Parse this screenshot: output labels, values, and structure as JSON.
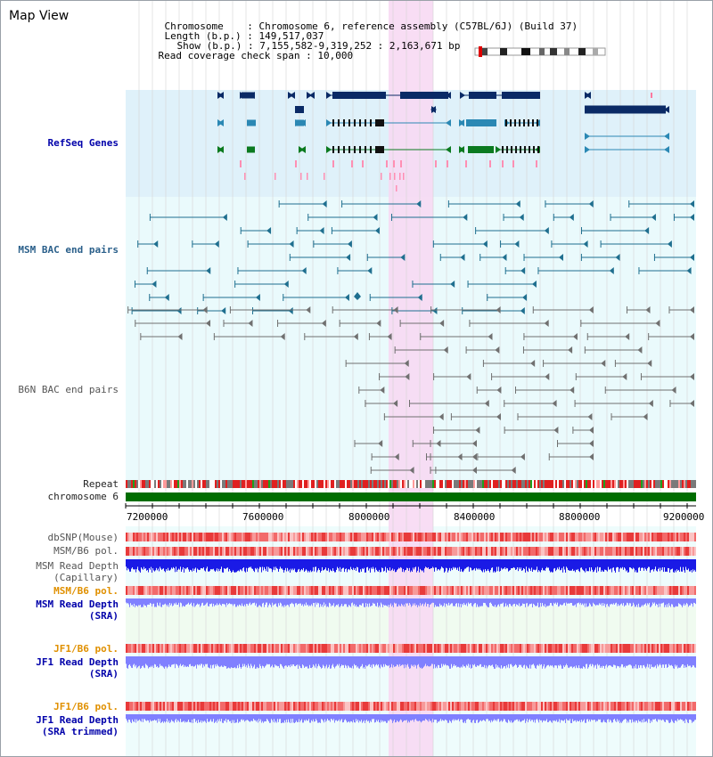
{
  "title": "Map View",
  "info": {
    "chromosome_label": "Chromosome",
    "chromosome_value": "Chromosome 6, reference assembly (C57BL/6J) (Build 37)",
    "length_label": "Length (b.p.)",
    "length_value": "149,517,037",
    "show_label": "Show (b.p.)",
    "show_value": "7,155,582-9,319,252 : 2,163,671 bp",
    "coverage_label": "Read coverage check span",
    "coverage_value": "10,000"
  },
  "tracks": {
    "refseq": "RefSeq Genes",
    "msm_bac": "MSM BAC end pairs",
    "b6n_bac": "B6N BAC end pairs",
    "repeat": "Repeat",
    "chromosome": "chromosome 6",
    "dbsnp": "dbSNP(Mouse)",
    "msm_b6_pol_1": "MSM/B6 pol.",
    "msm_read_depth_cap_1": "MSM Read Depth",
    "msm_read_depth_cap_2": "(Capillary)",
    "msm_b6_pol_2": "MSM/B6 pol.",
    "msm_read_depth_sra_1": "MSM Read Depth",
    "msm_read_depth_sra_2": "(SRA)",
    "jf1_b6_pol_1": "JF1/B6 pol.",
    "jf1_read_depth_sra_1": "JF1 Read Depth",
    "jf1_read_depth_sra_2": "(SRA)",
    "jf1_b6_pol_2": "JF1/B6 pol.",
    "jf1_read_depth_trim_1": "JF1 Read Depth",
    "jf1_read_depth_trim_2": "(SRA trimmed)"
  },
  "axis": {
    "ticks": [
      "7200000",
      "7600000",
      "8000000",
      "8400000",
      "8800000",
      "9200000"
    ]
  },
  "colors": {
    "refseq_bg": "#dff1fa",
    "bac_bg": "#eafafc",
    "highlight": "#f7d9f3",
    "gene_dark": "#0a2a66",
    "gene_mid": "#2b88b4",
    "gene_green": "#0b7a20",
    "msm_bac": "#1f6f8f",
    "b6n_bac": "#707070",
    "chromosome": "#006d00",
    "depth_blue": "#1a1ae6",
    "depth_light": "#8080ff",
    "snp_red": "#f07070"
  }
}
